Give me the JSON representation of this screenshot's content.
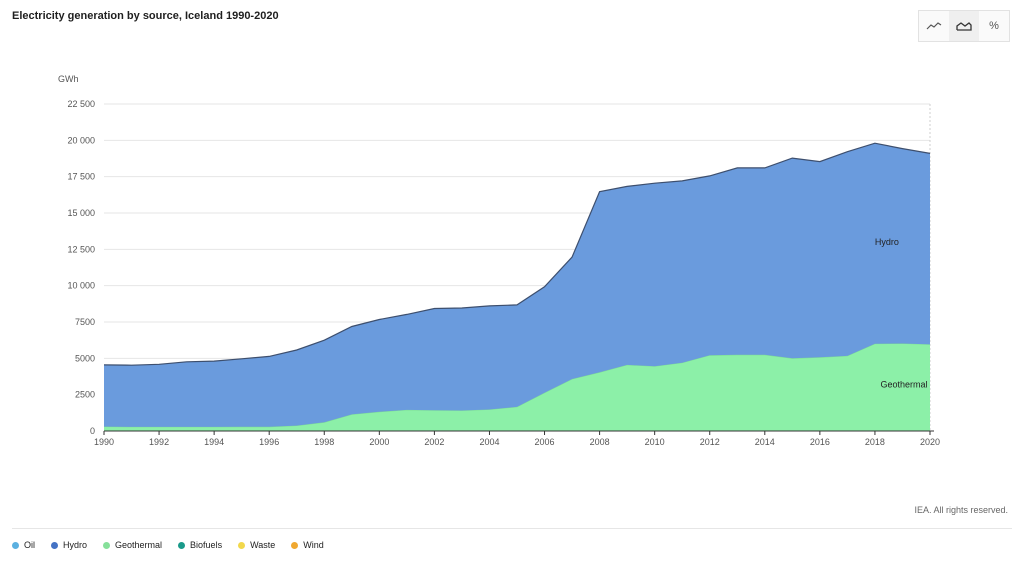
{
  "title": "Electricity generation by source, Iceland 1990-2020",
  "credit": "IEA. All rights reserved.",
  "toolbar": [
    {
      "icon": "line-chart-icon",
      "active": false
    },
    {
      "icon": "area-chart-icon",
      "active": true
    },
    {
      "icon": "percent-icon",
      "label": "%",
      "active": false
    }
  ],
  "legend": [
    {
      "label": "Oil",
      "color": "#5bb0e0"
    },
    {
      "label": "Hydro",
      "color": "#4472c4"
    },
    {
      "label": "Geothermal",
      "color": "#86e09a"
    },
    {
      "label": "Biofuels",
      "color": "#1a9a8a"
    },
    {
      "label": "Waste",
      "color": "#f2d84c"
    },
    {
      "label": "Wind",
      "color": "#f0a830"
    }
  ],
  "chart_data": {
    "type": "area",
    "stacked": true,
    "title": "Electricity generation by source, Iceland 1990-2020",
    "ylabel": "GWh",
    "ylim": [
      0,
      22500
    ],
    "yticks": [
      0,
      2500,
      5000,
      7500,
      10000,
      12500,
      15000,
      17500,
      20000,
      22500
    ],
    "ytick_labels": [
      "0",
      "2500",
      "5000",
      "7500",
      "10 000",
      "12 500",
      "15 000",
      "17 500",
      "20 000",
      "22 500"
    ],
    "xticks": [
      "1990",
      "1992",
      "1994",
      "1996",
      "1998",
      "2000",
      "2002",
      "2004",
      "2006",
      "2008",
      "2010",
      "2012",
      "2014",
      "2016",
      "2018",
      "2020"
    ],
    "x": [
      1990,
      1991,
      1992,
      1993,
      1994,
      1995,
      1996,
      1997,
      1998,
      1999,
      2000,
      2001,
      2002,
      2003,
      2004,
      2005,
      2006,
      2007,
      2008,
      2009,
      2010,
      2011,
      2012,
      2013,
      2014,
      2015,
      2016,
      2017,
      2018,
      2019,
      2020
    ],
    "grid": true,
    "series": [
      {
        "name": "Geothermal",
        "color": "#8cf0a8",
        "values": [
          300,
          280,
          280,
          280,
          280,
          290,
          290,
          370,
          600,
          1140,
          1320,
          1450,
          1430,
          1410,
          1480,
          1660,
          2630,
          3580,
          4040,
          4550,
          4460,
          4700,
          5210,
          5240,
          5240,
          5000,
          5070,
          5170,
          6010,
          6020,
          5960
        ]
      },
      {
        "name": "Hydro",
        "color": "#6a9bdd",
        "values": [
          4250,
          4250,
          4310,
          4480,
          4530,
          4680,
          4840,
          5200,
          5650,
          6050,
          6350,
          6570,
          7000,
          7050,
          7130,
          7020,
          7290,
          8390,
          12430,
          12280,
          12590,
          12510,
          12340,
          12860,
          12860,
          13780,
          13470,
          14050,
          13790,
          13410,
          13140
        ]
      }
    ],
    "annotations": [
      {
        "text": "Hydro",
        "x": 2018,
        "y": 12800
      },
      {
        "text": "Geothermal",
        "x": 2018.2,
        "y": 3000
      }
    ]
  }
}
